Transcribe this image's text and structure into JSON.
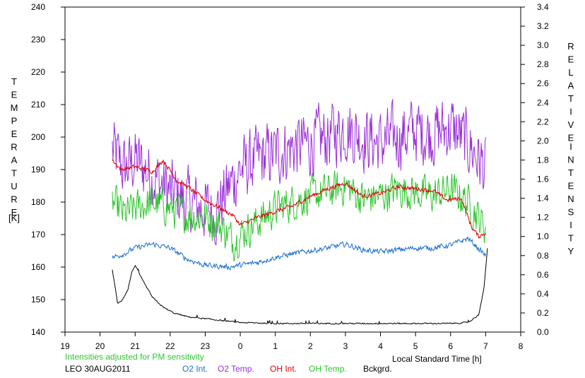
{
  "chart_data": {
    "type": "line",
    "x_unit": "Local Standard Time [h]",
    "xlabel": "Local Standard Time [h]",
    "x_ticks": [
      "19",
      "20",
      "21",
      "22",
      "23",
      "0",
      "1",
      "2",
      "3",
      "4",
      "5",
      "6",
      "7",
      "8"
    ],
    "xlim": [
      19,
      32
    ],
    "ylabel_left_letters": [
      "T",
      "E",
      "M",
      "P",
      "E",
      "R",
      "A",
      "T",
      "U",
      "R",
      "E"
    ],
    "ylabel_left_unit": "[K]",
    "ylim_left": [
      140,
      240
    ],
    "y_ticks_left": [
      "140",
      "150",
      "160",
      "170",
      "180",
      "190",
      "200",
      "210",
      "220",
      "230",
      "240"
    ],
    "ylabel_right_letters_1": [
      "R",
      "E",
      "L",
      "A",
      "T",
      "I",
      "V",
      "E"
    ],
    "ylabel_right_letters_2": [
      "I",
      "N",
      "T",
      "E",
      "N",
      "S",
      "I",
      "T",
      "Y"
    ],
    "ylim_right": [
      0.0,
      3.4
    ],
    "y_ticks_right": [
      "0.0",
      "0.2",
      "0.4",
      "0.6",
      "0.8",
      "1.0",
      "1.2",
      "1.4",
      "1.6",
      "1.8",
      "2.0",
      "2.2",
      "2.4",
      "2.6",
      "2.8",
      "3.0",
      "3.2",
      "3.4"
    ],
    "note": "Intensities adjusted for PM sensitivity",
    "station": "LEO 30AUG2011",
    "grid": false,
    "legend_position": "bottom",
    "series": [
      {
        "name": "O2 Int.",
        "color": "#1a6fd0",
        "axis": "right",
        "noise": 0.025,
        "x": [
          20.35,
          20.7,
          21.0,
          21.5,
          22.0,
          22.5,
          23.0,
          23.7,
          24.0,
          24.5,
          25.0,
          25.5,
          26.0,
          26.5,
          27.0,
          27.5,
          28.0,
          28.5,
          29.0,
          29.5,
          30.0,
          30.5,
          31.0
        ],
        "y": [
          0.78,
          0.82,
          0.88,
          0.92,
          0.88,
          0.76,
          0.7,
          0.68,
          0.7,
          0.73,
          0.78,
          0.82,
          0.85,
          0.88,
          0.92,
          0.86,
          0.84,
          0.86,
          0.88,
          0.88,
          0.91,
          0.98,
          0.8
        ]
      },
      {
        "name": "O2 Temp.",
        "color": "#9b30d8",
        "axis": "left",
        "noise": 9,
        "x": [
          20.35,
          20.7,
          21.0,
          21.5,
          22.0,
          22.5,
          23.0,
          23.3,
          23.7,
          24.0,
          24.5,
          25.0,
          25.5,
          26.0,
          26.5,
          27.0,
          27.5,
          28.0,
          28.5,
          29.0,
          29.5,
          30.0,
          30.5,
          31.0
        ],
        "y": [
          196,
          190,
          193,
          188,
          183,
          180,
          178,
          177,
          185,
          190,
          193,
          195,
          197,
          198,
          200,
          203,
          200,
          198,
          200,
          202,
          201,
          203,
          198,
          190
        ]
      },
      {
        "name": "OH Int.",
        "color": "#e00000",
        "axis": "right",
        "noise": 0.02,
        "x": [
          20.35,
          20.6,
          21.0,
          21.5,
          21.8,
          22.2,
          22.5,
          23.0,
          23.4,
          23.8,
          24.0,
          24.5,
          25.0,
          25.5,
          26.0,
          26.5,
          27.0,
          27.5,
          28.0,
          28.5,
          29.0,
          29.5,
          29.9,
          30.3,
          30.6,
          30.8,
          31.0
        ],
        "y": [
          1.8,
          1.7,
          1.73,
          1.68,
          1.8,
          1.58,
          1.52,
          1.38,
          1.3,
          1.22,
          1.12,
          1.2,
          1.26,
          1.32,
          1.42,
          1.5,
          1.56,
          1.42,
          1.45,
          1.52,
          1.5,
          1.48,
          1.38,
          1.4,
          1.1,
          1.0,
          1.04
        ]
      },
      {
        "name": "OH Temp.",
        "color": "#2ec52e",
        "axis": "left",
        "noise": 5,
        "x": [
          20.35,
          20.7,
          21.0,
          21.5,
          22.0,
          22.5,
          23.0,
          23.5,
          23.8,
          24.0,
          24.5,
          25.0,
          25.5,
          26.0,
          26.5,
          27.0,
          27.5,
          28.0,
          28.5,
          29.0,
          29.5,
          30.0,
          30.5,
          31.0
        ],
        "y": [
          180,
          176,
          178,
          180,
          178,
          176,
          175,
          172,
          168,
          170,
          174,
          178,
          180,
          182,
          183,
          185,
          181,
          182,
          184,
          183,
          182,
          184,
          180,
          172
        ]
      },
      {
        "name": "Bckgrd.",
        "color": "#000000",
        "axis": "right",
        "noise": 0.006,
        "x": [
          20.35,
          20.45,
          20.5,
          20.6,
          20.7,
          20.8,
          20.9,
          21.0,
          21.2,
          21.5,
          21.8,
          22.1,
          22.5,
          23.0,
          23.5,
          24.0,
          25.0,
          26.0,
          27.0,
          28.0,
          29.0,
          30.0,
          30.5,
          30.8,
          30.95,
          31.05
        ],
        "y": [
          0.65,
          0.42,
          0.3,
          0.32,
          0.38,
          0.45,
          0.62,
          0.7,
          0.55,
          0.36,
          0.26,
          0.2,
          0.16,
          0.14,
          0.12,
          0.1,
          0.09,
          0.09,
          0.09,
          0.09,
          0.09,
          0.09,
          0.1,
          0.18,
          0.45,
          0.88
        ]
      }
    ]
  }
}
